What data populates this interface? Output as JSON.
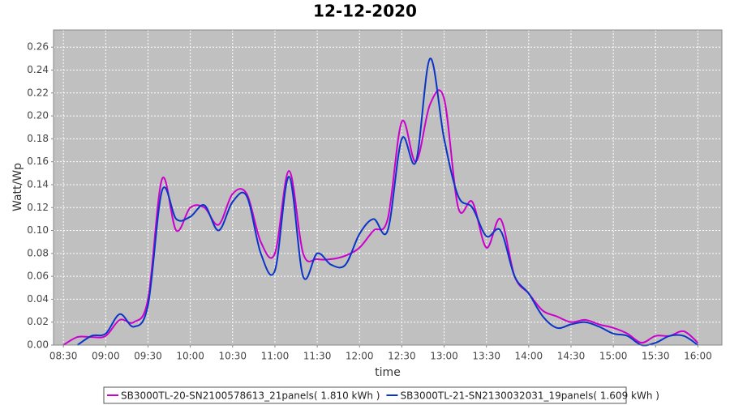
{
  "chart_data": {
    "type": "line",
    "title": "12-12-2020",
    "x_label": "time",
    "y_label": "Watt/Wp",
    "x": [
      "08:30",
      "08:40",
      "08:50",
      "09:00",
      "09:10",
      "09:20",
      "09:30",
      "09:40",
      "09:50",
      "10:00",
      "10:10",
      "10:20",
      "10:30",
      "10:40",
      "10:50",
      "11:00",
      "11:10",
      "11:20",
      "11:30",
      "11:40",
      "11:50",
      "12:00",
      "12:10",
      "12:20",
      "12:30",
      "12:40",
      "12:50",
      "13:00",
      "13:10",
      "13:20",
      "13:30",
      "13:40",
      "13:50",
      "14:00",
      "14:10",
      "14:20",
      "14:30",
      "14:40",
      "14:50",
      "15:00",
      "15:10",
      "15:20",
      "15:30",
      "15:40",
      "15:50",
      "16:00"
    ],
    "xlim": [
      "08:23",
      "16:17"
    ],
    "xticks": [
      "08:30",
      "09:00",
      "09:30",
      "10:00",
      "10:30",
      "11:00",
      "11:30",
      "12:00",
      "12:30",
      "13:00",
      "13:30",
      "14:00",
      "14:30",
      "15:00",
      "15:30",
      "16:00"
    ],
    "ylim": [
      0,
      0.275
    ],
    "yticks": [
      {
        "value": 0,
        "label": "0.00"
      },
      {
        "value": 0.02,
        "label": "0.02"
      },
      {
        "value": 0.04,
        "label": "0.04"
      },
      {
        "value": 0.06,
        "label": "0.06"
      },
      {
        "value": 0.08,
        "label": "0.08"
      },
      {
        "value": 0.1,
        "label": "0.10"
      },
      {
        "value": 0.12,
        "label": "0.12"
      },
      {
        "value": 0.14,
        "label": "0.14"
      },
      {
        "value": 0.16,
        "label": "0.16"
      },
      {
        "value": 0.18,
        "label": "0.18"
      },
      {
        "value": 0.2,
        "label": "0.20"
      },
      {
        "value": 0.22,
        "label": "0.22"
      },
      {
        "value": 0.24,
        "label": "0.24"
      },
      {
        "value": 0.26,
        "label": "0.26"
      }
    ],
    "grid": true,
    "legend": "bottom",
    "series": [
      {
        "name": "SB3000TL-20-SN2100578613_21panels( 1.810 kWh )",
        "color": "#cc00cc",
        "values": [
          0.0,
          0.007,
          0.007,
          0.008,
          0.022,
          0.02,
          0.04,
          0.145,
          0.1,
          0.12,
          0.12,
          0.105,
          0.132,
          0.132,
          0.09,
          0.08,
          0.152,
          0.08,
          0.075,
          0.075,
          0.078,
          0.085,
          0.1,
          0.11,
          0.195,
          0.16,
          0.21,
          0.215,
          0.12,
          0.125,
          0.085,
          0.11,
          0.06,
          0.045,
          0.03,
          0.025,
          0.02,
          0.022,
          0.018,
          0.015,
          0.01,
          0.002,
          0.008,
          0.008,
          0.012,
          0.002
        ]
      },
      {
        "name": "SB3000TL-21-SN2130032031_19panels( 1.609 kWh )",
        "color": "#0a34c8",
        "values": [
          null,
          0.0,
          0.008,
          0.01,
          0.027,
          0.016,
          0.035,
          0.135,
          0.11,
          0.112,
          0.122,
          0.1,
          0.125,
          0.13,
          0.08,
          0.065,
          0.147,
          0.06,
          0.08,
          0.07,
          0.07,
          0.097,
          0.11,
          0.1,
          0.18,
          0.16,
          0.25,
          0.18,
          0.13,
          0.12,
          0.095,
          0.1,
          0.06,
          0.045,
          0.025,
          0.015,
          0.018,
          0.02,
          0.016,
          0.01,
          0.008,
          0.0,
          0.002,
          0.008,
          0.008,
          0.0
        ]
      }
    ]
  }
}
